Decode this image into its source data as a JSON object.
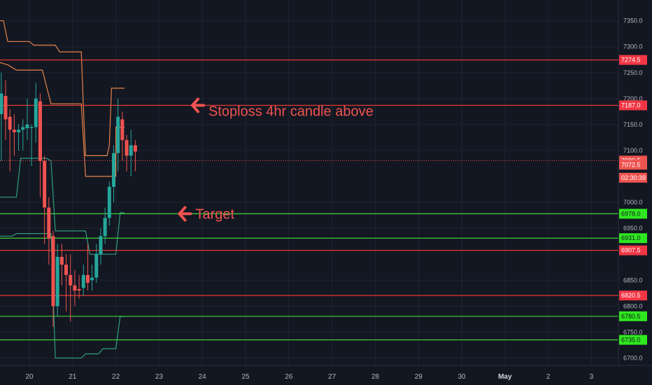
{
  "colors": {
    "background": "#131722",
    "grid": "#1f2433",
    "axis_text": "#b2b5be",
    "up": "#26a69a",
    "down": "#ef5350",
    "resistance": "#e53935",
    "support": "#43d13a",
    "donchian_orange": "#e8834a",
    "donchian_green": "#2e9e7e",
    "badge_red": "#f23645",
    "badge_green": "#2fe81f",
    "annotation": "#ef5350"
  },
  "chart_data": {
    "type": "candlestick",
    "y_axis": {
      "range": [
        6675,
        7390
      ],
      "ticks": [
        6700,
        6750,
        6800,
        6850,
        6950,
        7000,
        7100,
        7150,
        7200,
        7250,
        7300,
        7350
      ],
      "tick_labels": [
        "6700.0",
        "6750.0",
        "6800.0",
        "6850.0",
        "6950.0",
        "7000.0",
        "7100.0",
        "7150.0",
        "7200.0",
        "7250.0",
        "7300.0",
        "7350.0"
      ]
    },
    "x_axis": {
      "day_ticks": [
        {
          "day": 20,
          "label": "20",
          "bold": false
        },
        {
          "day": 21,
          "label": "21",
          "bold": false
        },
        {
          "day": 22,
          "label": "22",
          "bold": false
        },
        {
          "day": 23,
          "label": "23",
          "bold": false
        },
        {
          "day": 24,
          "label": "24",
          "bold": false
        },
        {
          "day": 25,
          "label": "25",
          "bold": false
        },
        {
          "day": 26,
          "label": "26",
          "bold": false
        },
        {
          "day": 27,
          "label": "27",
          "bold": false
        },
        {
          "day": 28,
          "label": "28",
          "bold": false
        },
        {
          "day": 29,
          "label": "29",
          "bold": false
        },
        {
          "day": 30,
          "label": "30",
          "bold": false
        },
        {
          "day": 31,
          "label": "May",
          "bold": true
        },
        {
          "day": 32,
          "label": "2",
          "bold": false
        },
        {
          "day": 33,
          "label": "3",
          "bold": false
        }
      ]
    },
    "candles": [
      {
        "t": 19.35,
        "o": 7170,
        "h": 7250,
        "l": 7080,
        "c": 7210
      },
      {
        "t": 19.45,
        "o": 7205,
        "h": 7235,
        "l": 7120,
        "c": 7160
      },
      {
        "t": 19.55,
        "o": 7165,
        "h": 7180,
        "l": 7060,
        "c": 7140
      },
      {
        "t": 19.65,
        "o": 7140,
        "h": 7170,
        "l": 7090,
        "c": 7135
      },
      {
        "t": 19.75,
        "o": 7135,
        "h": 7150,
        "l": 7100,
        "c": 7140
      },
      {
        "t": 19.85,
        "o": 7140,
        "h": 7160,
        "l": 7100,
        "c": 7145
      },
      {
        "t": 19.95,
        "o": 7143,
        "h": 7200,
        "l": 7120,
        "c": 7150
      },
      {
        "t": 20.05,
        "o": 7143,
        "h": 7150,
        "l": 7070,
        "c": 7145
      },
      {
        "t": 20.15,
        "o": 7145,
        "h": 7230,
        "l": 7115,
        "c": 7200
      },
      {
        "t": 20.25,
        "o": 7195,
        "h": 7210,
        "l": 7010,
        "c": 7080
      },
      {
        "t": 20.35,
        "o": 7080,
        "h": 7090,
        "l": 6920,
        "c": 6990
      },
      {
        "t": 20.45,
        "o": 6990,
        "h": 7010,
        "l": 6880,
        "c": 6930
      },
      {
        "t": 20.55,
        "o": 6935,
        "h": 6945,
        "l": 6760,
        "c": 6800
      },
      {
        "t": 20.65,
        "o": 6800,
        "h": 6920,
        "l": 6780,
        "c": 6895
      },
      {
        "t": 20.75,
        "o": 6895,
        "h": 6920,
        "l": 6840,
        "c": 6880
      },
      {
        "t": 20.85,
        "o": 6880,
        "h": 6900,
        "l": 6790,
        "c": 6860
      },
      {
        "t": 20.95,
        "o": 6860,
        "h": 6900,
        "l": 6770,
        "c": 6840
      },
      {
        "t": 21.05,
        "o": 6840,
        "h": 6870,
        "l": 6800,
        "c": 6830
      },
      {
        "t": 21.15,
        "o": 6833,
        "h": 6860,
        "l": 6815,
        "c": 6830
      },
      {
        "t": 21.25,
        "o": 6835,
        "h": 6880,
        "l": 6820,
        "c": 6860
      },
      {
        "t": 21.35,
        "o": 6860,
        "h": 6920,
        "l": 6830,
        "c": 6845
      },
      {
        "t": 21.45,
        "o": 6850,
        "h": 6880,
        "l": 6830,
        "c": 6855
      },
      {
        "t": 21.55,
        "o": 6855,
        "h": 6920,
        "l": 6845,
        "c": 6900
      },
      {
        "t": 21.65,
        "o": 6900,
        "h": 6950,
        "l": 6880,
        "c": 6935
      },
      {
        "t": 21.75,
        "o": 6935,
        "h": 6990,
        "l": 6920,
        "c": 6970
      },
      {
        "t": 21.85,
        "o": 6970,
        "h": 7040,
        "l": 6955,
        "c": 7030
      },
      {
        "t": 21.95,
        "o": 7030,
        "h": 7110,
        "l": 7000,
        "c": 7095
      },
      {
        "t": 22.05,
        "o": 7095,
        "h": 7200,
        "l": 7060,
        "c": 7165
      },
      {
        "t": 22.15,
        "o": 7160,
        "h": 7175,
        "l": 7080,
        "c": 7120
      },
      {
        "t": 22.25,
        "o": 7120,
        "h": 7130,
        "l": 7060,
        "c": 7090
      },
      {
        "t": 22.35,
        "o": 7090,
        "h": 7140,
        "l": 7050,
        "c": 7110
      },
      {
        "t": 22.45,
        "o": 7110,
        "h": 7120,
        "l": 7060,
        "c": 7098
      }
    ],
    "donchian_orange_upper": [
      [
        19.3,
        7350
      ],
      [
        19.4,
        7350
      ],
      [
        19.5,
        7310
      ],
      [
        19.6,
        7310
      ],
      [
        20.0,
        7310
      ],
      [
        20.1,
        7303
      ],
      [
        20.6,
        7303
      ],
      [
        20.7,
        7290
      ],
      [
        21.2,
        7290
      ],
      [
        21.2,
        7290
      ],
      [
        21.25,
        7180
      ],
      [
        21.3,
        7090
      ],
      [
        21.8,
        7090
      ],
      [
        21.85,
        7110
      ],
      [
        21.9,
        7220
      ],
      [
        22.2,
        7220
      ]
    ],
    "donchian_orange_lower": [
      [
        19.3,
        7270
      ],
      [
        19.5,
        7265
      ],
      [
        19.7,
        7255
      ],
      [
        20.3,
        7255
      ],
      [
        20.5,
        7190
      ],
      [
        21.2,
        7190
      ],
      [
        21.3,
        7050
      ],
      [
        22.0,
        7050
      ],
      [
        22.0,
        7145
      ],
      [
        22.2,
        7145
      ]
    ],
    "donchian_green_upper": [
      [
        19.3,
        7010
      ],
      [
        19.7,
        7010
      ],
      [
        19.8,
        7085
      ],
      [
        20.4,
        7085
      ],
      [
        20.5,
        7080
      ],
      [
        20.6,
        6945
      ],
      [
        21.3,
        6945
      ],
      [
        21.4,
        6900
      ],
      [
        22.0,
        6900
      ],
      [
        22.1,
        6980
      ],
      [
        22.2,
        6980
      ]
    ],
    "donchian_green_lower": [
      [
        19.3,
        6935
      ],
      [
        19.6,
        6935
      ],
      [
        19.7,
        6940
      ],
      [
        20.5,
        6940
      ],
      [
        20.6,
        6700
      ],
      [
        21.2,
        6700
      ],
      [
        21.3,
        6708
      ],
      [
        21.6,
        6708
      ],
      [
        21.7,
        6718
      ],
      [
        22.0,
        6718
      ],
      [
        22.1,
        6780
      ],
      [
        22.2,
        6780
      ]
    ],
    "horizontal_levels": [
      {
        "price": 7274.5,
        "label": "7274.5",
        "type": "resistance"
      },
      {
        "price": 7187.0,
        "label": "7187.0",
        "type": "resistance"
      },
      {
        "price": 6978.0,
        "label": "6978.0",
        "type": "support"
      },
      {
        "price": 6931.0,
        "label": "6931.0",
        "type": "support"
      },
      {
        "price": 6907.5,
        "label": "6907.5",
        "type": "resistance"
      },
      {
        "price": 6820.5,
        "label": "6820.5",
        "type": "resistance"
      },
      {
        "price": 6780.5,
        "label": "6780.5",
        "type": "support"
      },
      {
        "price": 6735.0,
        "label": "6735.0",
        "type": "support"
      }
    ],
    "price_line": {
      "price": 7080.5,
      "label": "7080.5"
    },
    "extra_badges": [
      {
        "price": 7072.5,
        "label": "7072.5"
      },
      {
        "price": 7047.5,
        "label": "02:30:39"
      }
    ],
    "annotations": [
      {
        "text": "Stoploss 4hr candle above",
        "price": 7187,
        "t": 23.9
      },
      {
        "text": "Target",
        "price": 6978,
        "t": 23.6
      }
    ]
  }
}
